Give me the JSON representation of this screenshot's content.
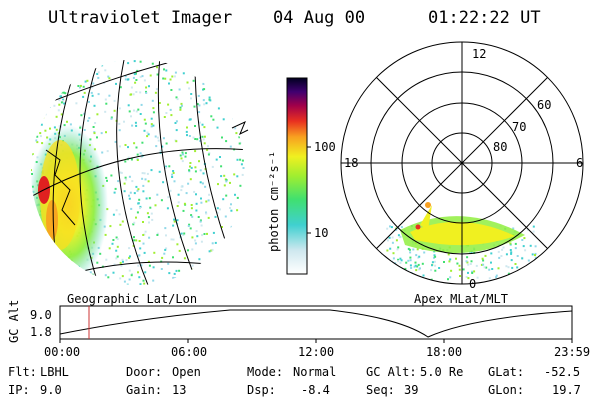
{
  "header": {
    "instrument": "Ultraviolet Imager",
    "date": "04 Aug 00",
    "time": "01:22:22 UT"
  },
  "left_panel": {
    "label": "Geographic Lat/Lon"
  },
  "right_panel": {
    "label": "Apex MLat/MLT",
    "mlt_labels": [
      "12",
      "18",
      "6",
      "0"
    ],
    "lat_labels": [
      "60",
      "70",
      "80"
    ]
  },
  "colorbar": {
    "unit_label": "photon cm⁻²s⁻¹",
    "ticks": [
      "100",
      "10"
    ],
    "scale": "log"
  },
  "altitude_plot": {
    "ylabel": "GC Alt",
    "yticks": [
      "9.0",
      "1.8"
    ],
    "xticks": [
      "00:00",
      "06:00",
      "12:00",
      "18:00",
      "23:59"
    ],
    "cursor_color": "#cc3333"
  },
  "status": {
    "filter": {
      "key": "Flt:",
      "value": "LBHL"
    },
    "ip": {
      "key": "IP:",
      "value": "9.0"
    },
    "door": {
      "key": "Door:",
      "value": "Open"
    },
    "gain": {
      "key": "Gain:",
      "value": "13"
    },
    "mode": {
      "key": "Mode:",
      "value": "Normal"
    },
    "dsp": {
      "key": "Dsp:",
      "value": "-8.4"
    },
    "gcalt": {
      "key": "GC Alt:",
      "value": "5.0 Re"
    },
    "seq": {
      "key": "Seq:",
      "value": "39"
    },
    "glat": {
      "key": "GLat:",
      "value": "-52.5"
    },
    "glon": {
      "key": "GLon:",
      "value": "19.7"
    }
  }
}
